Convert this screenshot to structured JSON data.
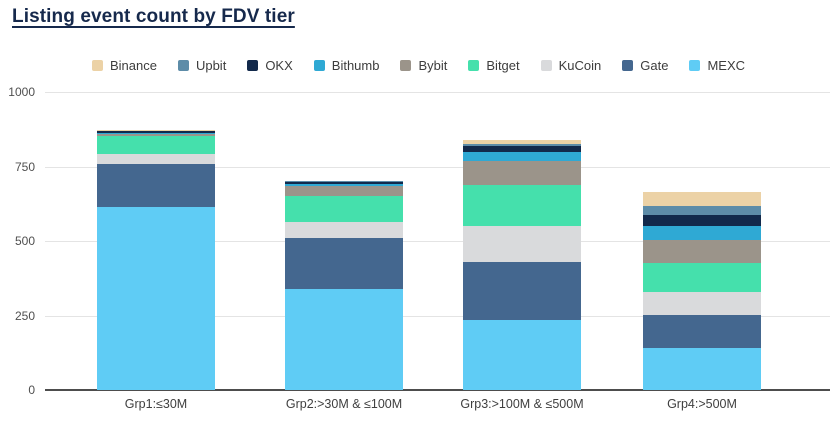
{
  "title": "Listing event count by FDV tier",
  "chart_data": {
    "type": "bar",
    "stacked": true,
    "title": "Listing event count by FDV tier",
    "categories": [
      "Grp1:≤30M",
      "Grp2:>30M & ≤100M",
      "Grp3:>100M & ≤500M",
      "Grp4:>500M"
    ],
    "series": [
      {
        "name": "Binance",
        "color": "#ecd2a6",
        "values": [
          1,
          1,
          13,
          47
        ]
      },
      {
        "name": "Upbit",
        "color": "#5d8ca8",
        "values": [
          1,
          3,
          8,
          31
        ]
      },
      {
        "name": "OKX",
        "color": "#12294b",
        "values": [
          7,
          5,
          20,
          39
        ]
      },
      {
        "name": "Bithumb",
        "color": "#2fa9d4",
        "values": [
          2,
          8,
          30,
          47
        ]
      },
      {
        "name": "Bybit",
        "color": "#9b948a",
        "values": [
          7,
          34,
          80,
          77
        ]
      },
      {
        "name": "Bitget",
        "color": "#45e0ac",
        "values": [
          60,
          87,
          139,
          95
        ]
      },
      {
        "name": "KuCoin",
        "color": "#d9dadc",
        "values": [
          33,
          54,
          119,
          78
        ]
      },
      {
        "name": "Gate",
        "color": "#44678f",
        "values": [
          146,
          171,
          195,
          112
        ]
      },
      {
        "name": "MEXC",
        "color": "#5fccf5",
        "values": [
          614,
          339,
          235,
          140
        ]
      }
    ],
    "stack_order_bottom_to_top": [
      "MEXC",
      "Gate",
      "KuCoin",
      "Bitget",
      "Bybit",
      "Bithumb",
      "OKX",
      "Upbit",
      "Binance"
    ],
    "totals": [
      871,
      702,
      839,
      666
    ],
    "xlabel": "",
    "ylabel": "",
    "ylim": [
      0,
      1000
    ],
    "yticks": [
      0,
      250,
      500,
      750,
      1000
    ],
    "grid": true,
    "legend_position": "top"
  }
}
